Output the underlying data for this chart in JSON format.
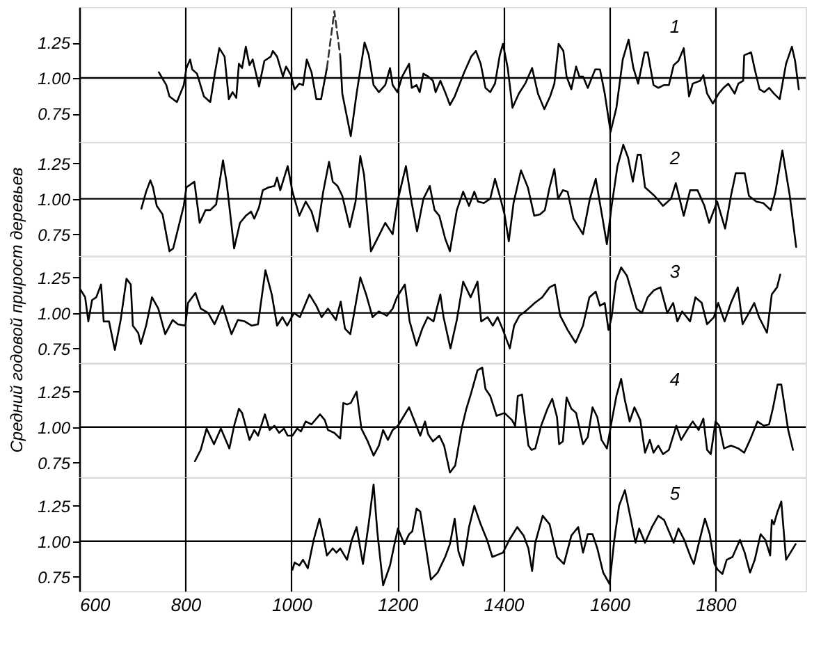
{
  "chart_data": [
    {
      "type": "line",
      "xlim": [
        600,
        1970
      ],
      "xticks": [
        600,
        800,
        1000,
        1200,
        1400,
        1600,
        1800
      ],
      "ylim": [
        0.55,
        1.5
      ],
      "yticks": [
        {
          "value": 1.25,
          "label": "1.25"
        },
        {
          "value": 1,
          "label": "1.00"
        },
        {
          "value": 0.75,
          "label": "0.75"
        }
      ],
      "grid": "x",
      "tick_labels": "y",
      "ref_lines": [
        {
          "axis": "y",
          "value": 1
        }
      ],
      "series": [
        {
          "name": "1",
          "color": "#000000",
          "x": [
            750,
            764,
            770,
            784,
            797,
            802,
            809,
            813,
            822,
            835,
            847,
            856,
            864,
            874,
            882,
            889,
            896,
            901,
            907,
            914,
            921,
            927,
            939,
            949,
            961,
            965,
            973,
            984,
            990,
            999,
            1006,
            1015,
            1022,
            1029,
            1038,
            1047,
            1056,
            1067,
            1081,
            1092,
            1096,
            1112,
            1123,
            1138,
            1146,
            1155,
            1165,
            1177,
            1186,
            1191,
            1200,
            1209,
            1222,
            1227,
            1236,
            1242,
            1249,
            1258,
            1267,
            1272,
            1281,
            1290,
            1299,
            1308,
            1326,
            1339,
            1348,
            1357,
            1366,
            1375,
            1384,
            1393,
            1399,
            1408,
            1417,
            1429,
            1441,
            1454,
            1465,
            1477,
            1488,
            1496,
            1504,
            1513,
            1519,
            1528,
            1537,
            1543,
            1550,
            1559,
            1573,
            1582,
            1591,
            1602,
            1613,
            1625,
            1636,
            1645,
            1654,
            1666,
            1672,
            1683,
            1692,
            1703,
            1712,
            1721,
            1730,
            1740,
            1750,
            1757,
            1771,
            1777,
            1784,
            1795,
            1806,
            1815,
            1824,
            1836,
            1843,
            1852,
            1854,
            1867,
            1874,
            1883,
            1892,
            1901,
            1910,
            1921,
            1933,
            1944,
            1950,
            1957
          ],
          "values": [
            1.04,
            0.95,
            0.87,
            0.83,
            0.95,
            1.07,
            1.13,
            1.06,
            1.03,
            0.87,
            0.83,
            1.04,
            1.21,
            1.15,
            0.85,
            0.9,
            0.86,
            1.1,
            1.07,
            1.22,
            1.09,
            1.13,
            0.94,
            1.12,
            1.15,
            1.19,
            1.15,
            1.01,
            1.08,
            1.02,
            0.92,
            0.96,
            0.95,
            1.13,
            1.04,
            0.85,
            0.85,
            1.07,
            null,
            1.16,
            0.89,
            0.59,
            0.89,
            1.25,
            1.16,
            0.95,
            0.9,
            0.95,
            1.07,
            0.95,
            0.9,
            1.01,
            1.1,
            0.93,
            0.95,
            0.9,
            1.03,
            1.01,
            0.98,
            0.9,
            0.98,
            0.9,
            0.81,
            0.87,
            1.04,
            1.15,
            1.19,
            1.1,
            0.93,
            0.9,
            0.96,
            1.16,
            1.24,
            1.07,
            0.79,
            0.89,
            0.96,
            1.07,
            0.89,
            0.78,
            0.87,
            0.96,
            1.24,
            1.19,
            1.01,
            0.92,
            1.08,
            1.01,
            1.01,
            0.93,
            1.06,
            1.06,
            0.89,
            0.62,
            0.79,
            1.13,
            1.27,
            1.07,
            0.96,
            1.18,
            1.18,
            0.95,
            0.93,
            0.95,
            0.95,
            1.09,
            1.12,
            1.21,
            0.87,
            0.96,
            0.98,
            1.02,
            0.89,
            0.82,
            0.89,
            0.93,
            0.96,
            0.89,
            0.96,
            0.98,
            1.16,
            1.18,
            1.06,
            0.92,
            0.9,
            0.93,
            0.89,
            0.85,
            1.1,
            1.22,
            1.12,
            0.92
          ]
        },
        {
          "color": "#333333",
          "line_style": "dashed",
          "x": [
            1067,
            1081,
            1092
          ],
          "values": [
            1.07,
            1.47,
            1.16
          ]
        }
      ]
    },
    {
      "type": "line",
      "xlim": [
        600,
        1970
      ],
      "xticks": [
        600,
        800,
        1000,
        1200,
        1400,
        1600,
        1800
      ],
      "ylim": [
        0.6,
        1.4
      ],
      "yticks": [
        {
          "value": 1.25,
          "label": "1.25"
        },
        {
          "value": 1,
          "label": "1.00"
        },
        {
          "value": 0.75,
          "label": "0.75"
        }
      ],
      "grid": "x",
      "tick_labels": "y",
      "ref_lines": [
        {
          "axis": "y",
          "value": 1
        }
      ],
      "series": [
        {
          "name": "2",
          "color": "#000000",
          "x": [
            717,
            726,
            734,
            739,
            746,
            757,
            770,
            777,
            797,
            802,
            817,
            827,
            838,
            847,
            858,
            871,
            878,
            892,
            903,
            914,
            924,
            930,
            939,
            946,
            957,
            968,
            973,
            979,
            993,
            1002,
            1015,
            1027,
            1038,
            1049,
            1060,
            1071,
            1078,
            1087,
            1096,
            1110,
            1121,
            1130,
            1137,
            1150,
            1165,
            1177,
            1191,
            1200,
            1216,
            1227,
            1237,
            1249,
            1261,
            1270,
            1279,
            1290,
            1299,
            1312,
            1324,
            1335,
            1345,
            1352,
            1363,
            1375,
            1384,
            1393,
            1402,
            1410,
            1419,
            1433,
            1446,
            1458,
            1469,
            1478,
            1487,
            1496,
            1503,
            1512,
            1521,
            1532,
            1550,
            1563,
            1574,
            1586,
            1595,
            1604,
            1615,
            1626,
            1635,
            1644,
            1653,
            1659,
            1667,
            1685,
            1701,
            1716,
            1725,
            1740,
            1752,
            1766,
            1779,
            1788,
            1803,
            1818,
            1829,
            1838,
            1855,
            1863,
            1877,
            1890,
            1904,
            1913,
            1926,
            1940,
            1952
          ],
          "values": [
            0.93,
            1.05,
            1.13,
            1.08,
            0.95,
            0.89,
            0.63,
            0.65,
            0.95,
            1.08,
            1.12,
            0.83,
            0.92,
            0.92,
            0.96,
            1.27,
            1.11,
            0.65,
            0.83,
            0.88,
            0.91,
            0.86,
            0.94,
            1.06,
            1.08,
            1.09,
            1.15,
            1.06,
            1.23,
            1.05,
            0.88,
            0.98,
            0.91,
            0.77,
            1.05,
            1.26,
            1.12,
            1.09,
            1.02,
            0.8,
            0.98,
            1.3,
            1.17,
            0.63,
            0.74,
            0.83,
            0.75,
            0.98,
            1.23,
            0.97,
            0.77,
            1.0,
            1.09,
            0.92,
            0.88,
            0.72,
            0.63,
            0.92,
            1.05,
            0.95,
            1.05,
            0.98,
            0.97,
            1.0,
            1.14,
            1.02,
            0.89,
            0.7,
            0.97,
            1.2,
            1.08,
            0.88,
            0.89,
            0.92,
            1.08,
            1.21,
            1.0,
            1.06,
            1.05,
            0.86,
            0.75,
            1.0,
            1.14,
            0.88,
            0.68,
            0.95,
            1.23,
            1.38,
            1.29,
            1.12,
            1.31,
            1.31,
            1.08,
            1.02,
            0.95,
            1.0,
            1.11,
            0.88,
            1.06,
            1.06,
            0.95,
            0.83,
            0.98,
            0.79,
            1.02,
            1.18,
            1.18,
            1.02,
            0.98,
            0.97,
            0.92,
            1.05,
            1.34,
            1.02,
            0.66
          ]
        }
      ]
    },
    {
      "type": "line",
      "ylabel": "Средний годовой прирост деревьев",
      "xlim": [
        600,
        1970
      ],
      "xticks": [
        600,
        800,
        1000,
        1200,
        1400,
        1600,
        1800
      ],
      "ylim": [
        0.65,
        1.4
      ],
      "yticks": [
        {
          "value": 1.25,
          "label": "1.25"
        },
        {
          "value": 1,
          "label": "1.00"
        },
        {
          "value": 0.75,
          "label": "0.75"
        }
      ],
      "grid": "x",
      "tick_labels": "y",
      "ref_lines": [
        {
          "axis": "y",
          "value": 1
        }
      ],
      "series": [
        {
          "name": "3",
          "color": "#000000",
          "x": [
            603,
            611,
            617,
            624,
            632,
            641,
            646,
            656,
            667,
            678,
            689,
            697,
            701,
            711,
            716,
            726,
            737,
            749,
            762,
            776,
            786,
            800,
            805,
            819,
            829,
            843,
            855,
            870,
            887,
            899,
            912,
            925,
            937,
            951,
            963,
            973,
            983,
            992,
            1005,
            1016,
            1034,
            1047,
            1057,
            1069,
            1084,
            1093,
            1101,
            1111,
            1117,
            1130,
            1141,
            1153,
            1165,
            1180,
            1191,
            1199,
            1214,
            1223,
            1236,
            1247,
            1257,
            1268,
            1281,
            1287,
            1300,
            1312,
            1324,
            1338,
            1351,
            1358,
            1370,
            1380,
            1389,
            1399,
            1412,
            1420,
            1430,
            1441,
            1459,
            1473,
            1487,
            1497,
            1507,
            1521,
            1536,
            1550,
            1562,
            1574,
            1582,
            1591,
            1598,
            1604,
            1612,
            1622,
            1633,
            1651,
            1661,
            1672,
            1684,
            1696,
            1709,
            1720,
            1728,
            1737,
            1752,
            1762,
            1774,
            1784,
            1797,
            1805,
            1817,
            1829,
            1842,
            1851,
            1863,
            1873,
            1882,
            1897,
            1906,
            1916,
            1922
          ],
          "values": [
            1.16,
            1.11,
            0.94,
            1.09,
            1.11,
            1.2,
            0.94,
            0.94,
            0.74,
            0.95,
            1.24,
            1.2,
            0.91,
            0.86,
            0.78,
            0.91,
            1.11,
            1.03,
            0.85,
            0.95,
            0.92,
            0.91,
            1.07,
            1.14,
            1.03,
            1.0,
            0.92,
            1.05,
            0.85,
            0.95,
            0.94,
            0.91,
            0.92,
            1.3,
            1.13,
            0.91,
            0.97,
            0.91,
            1.0,
            0.97,
            1.13,
            1.05,
            0.97,
            1.03,
            0.95,
            1.08,
            0.89,
            0.85,
            0.97,
            1.25,
            1.13,
            0.97,
            1.01,
            0.98,
            1.03,
            1.11,
            1.2,
            0.94,
            0.77,
            0.89,
            0.97,
            0.94,
            1.13,
            0.97,
            0.75,
            0.95,
            1.22,
            1.11,
            1.22,
            0.94,
            0.97,
            0.91,
            0.97,
            0.88,
            0.75,
            0.91,
            0.98,
            1.01,
            1.07,
            1.11,
            1.18,
            1.2,
            0.98,
            0.88,
            0.79,
            0.91,
            1.11,
            1.15,
            1.05,
            1.07,
            0.88,
            0.97,
            1.22,
            1.32,
            1.26,
            1.03,
            1.0,
            1.11,
            1.16,
            1.18,
            1.0,
            1.07,
            0.94,
            1.01,
            0.94,
            1.11,
            1.07,
            0.92,
            0.97,
            1.07,
            0.94,
            1.07,
            1.18,
            0.92,
            1.0,
            1.07,
            0.97,
            0.86,
            1.13,
            1.18,
            1.27
          ]
        }
      ]
    },
    {
      "type": "line",
      "xlim": [
        600,
        1970
      ],
      "xticks": [
        600,
        800,
        1000,
        1200,
        1400,
        1600,
        1800
      ],
      "ylim": [
        0.65,
        1.45
      ],
      "yticks": [
        {
          "value": 1.25,
          "label": "1.25"
        },
        {
          "value": 1,
          "label": "1.00"
        },
        {
          "value": 0.75,
          "label": "0.75"
        }
      ],
      "grid": "x",
      "tick_labels": "y",
      "ref_lines": [
        {
          "axis": "y",
          "value": 1
        }
      ],
      "series": [
        {
          "name": "4",
          "color": "#000000",
          "x": [
            818,
            829,
            840,
            854,
            867,
            883,
            892,
            901,
            907,
            921,
            930,
            937,
            950,
            959,
            968,
            977,
            986,
            993,
            1002,
            1011,
            1018,
            1027,
            1038,
            1054,
            1063,
            1069,
            1081,
            1092,
            1098,
            1105,
            1112,
            1123,
            1132,
            1144,
            1155,
            1165,
            1173,
            1182,
            1191,
            1201,
            1222,
            1243,
            1252,
            1258,
            1267,
            1279,
            1288,
            1299,
            1309,
            1321,
            1330,
            1339,
            1351,
            1360,
            1366,
            1375,
            1387,
            1402,
            1416,
            1422,
            1427,
            1435,
            1442,
            1447,
            1453,
            1460,
            1471,
            1483,
            1492,
            1501,
            1505,
            1512,
            1519,
            1528,
            1537,
            1550,
            1559,
            1568,
            1577,
            1585,
            1595,
            1604,
            1613,
            1622,
            1629,
            1638,
            1647,
            1658,
            1667,
            1676,
            1683,
            1692,
            1701,
            1712,
            1726,
            1735,
            1748,
            1757,
            1768,
            1777,
            1784,
            1791,
            1800,
            1807,
            1816,
            1829,
            1843,
            1854,
            1865,
            1879,
            1891,
            1901,
            1908,
            1917,
            1924,
            1937,
            1946
          ],
          "values": [
            0.76,
            0.84,
            0.99,
            0.88,
            0.99,
            0.85,
            1.01,
            1.13,
            1.1,
            0.91,
            0.98,
            0.94,
            1.09,
            0.98,
            1.01,
            0.96,
            0.99,
            0.94,
            0.94,
            0.99,
            0.97,
            1.04,
            1.02,
            1.09,
            1.05,
            0.98,
            0.96,
            0.92,
            1.17,
            1.16,
            1.17,
            1.25,
            0.99,
            0.9,
            0.8,
            0.87,
            0.98,
            0.91,
            0.98,
            1.01,
            1.14,
            0.94,
            1.04,
            0.95,
            0.9,
            0.94,
            0.87,
            0.68,
            0.73,
            0.99,
            1.13,
            1.24,
            1.4,
            1.42,
            1.27,
            1.22,
            1.08,
            1.1,
            1.05,
            1.01,
            1.22,
            1.23,
            1.02,
            0.87,
            0.84,
            0.85,
            1.01,
            1.13,
            1.2,
            1.07,
            0.88,
            0.9,
            1.21,
            1.13,
            1.1,
            0.88,
            0.93,
            1.14,
            1.07,
            0.91,
            0.85,
            1.04,
            1.22,
            1.34,
            1.19,
            1.04,
            1.14,
            1.05,
            0.82,
            0.91,
            0.82,
            0.87,
            0.81,
            0.84,
            1.01,
            0.91,
            0.99,
            1.04,
            0.98,
            1.06,
            0.84,
            0.81,
            1.04,
            1.01,
            0.85,
            0.87,
            0.85,
            0.82,
            0.91,
            1.04,
            1.01,
            1.02,
            1.13,
            1.3,
            1.3,
            0.98,
            0.84
          ]
        }
      ]
    },
    {
      "type": "line",
      "xlim": [
        600,
        1970
      ],
      "xticks": [
        600,
        800,
        1000,
        1200,
        1400,
        1600,
        1800
      ],
      "ylim": [
        0.65,
        1.45
      ],
      "yticks": [
        {
          "value": 1.25,
          "label": "1.25"
        },
        {
          "value": 1,
          "label": "1.00"
        },
        {
          "value": 0.75,
          "label": "0.75"
        }
      ],
      "grid": "x",
      "ref_lines": [
        {
          "axis": "y",
          "value": 1
        }
      ],
      "series": [
        {
          "name": "5",
          "color": "#000000",
          "x": [
            1002,
            1006,
            1015,
            1022,
            1031,
            1042,
            1053,
            1060,
            1067,
            1078,
            1085,
            1092,
            1105,
            1114,
            1123,
            1135,
            1146,
            1155,
            1162,
            1173,
            1186,
            1195,
            1201,
            1213,
            1222,
            1228,
            1236,
            1243,
            1249,
            1263,
            1276,
            1290,
            1299,
            1308,
            1315,
            1324,
            1335,
            1345,
            1357,
            1369,
            1379,
            1399,
            1411,
            1426,
            1438,
            1447,
            1454,
            1460,
            1474,
            1487,
            1501,
            1514,
            1528,
            1541,
            1550,
            1559,
            1568,
            1577,
            1588,
            1600,
            1609,
            1618,
            1629,
            1640,
            1649,
            1656,
            1667,
            1680,
            1692,
            1703,
            1712,
            1721,
            1730,
            1741,
            1753,
            1759,
            1768,
            1780,
            1789,
            1798,
            1804,
            1813,
            1821,
            1832,
            1846,
            1855,
            1865,
            1874,
            1885,
            1894,
            1903,
            1906,
            1910,
            1917,
            1924,
            1933,
            1951
          ],
          "values": [
            0.8,
            0.85,
            0.83,
            0.87,
            0.81,
            1.01,
            1.16,
            1.04,
            0.9,
            0.95,
            0.92,
            0.95,
            0.87,
            1.01,
            1.1,
            0.84,
            1.13,
            1.4,
            1.07,
            0.69,
            0.83,
            0.99,
            1.09,
            0.98,
            1.05,
            1.07,
            1.23,
            1.21,
            1.07,
            0.73,
            0.78,
            0.89,
            0.98,
            1.16,
            0.93,
            0.83,
            1.1,
            1.25,
            1.12,
            1.01,
            0.89,
            0.92,
            1.01,
            1.1,
            1.04,
            0.95,
            0.79,
            0.99,
            1.18,
            1.12,
            0.89,
            0.84,
            1.04,
            1.1,
            0.92,
            1.05,
            1.05,
            0.95,
            0.78,
            0.7,
            1.01,
            1.25,
            1.36,
            1.16,
            0.99,
            1.09,
            0.99,
            1.1,
            1.18,
            1.15,
            1.07,
            0.99,
            1.09,
            1.01,
            0.89,
            0.84,
            0.98,
            1.16,
            1.05,
            0.84,
            0.8,
            0.77,
            0.87,
            0.89,
            1.01,
            0.92,
            0.78,
            0.87,
            1.05,
            1.01,
            0.9,
            1.15,
            1.12,
            1.21,
            1.28,
            0.87,
            0.98
          ]
        }
      ]
    }
  ]
}
